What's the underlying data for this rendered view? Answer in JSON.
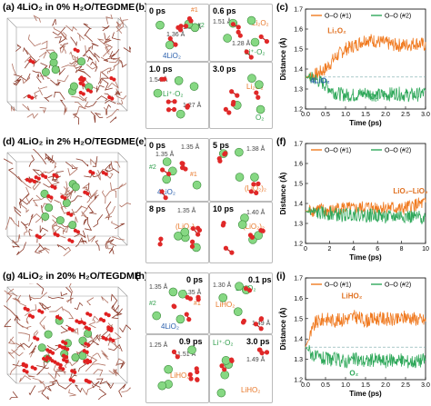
{
  "row1": {
    "a": {
      "letter": "(a)",
      "title": "4LiO₂ in 0% H₂O/TEGDME"
    },
    "b": {
      "letter": "(b)",
      "p1": {
        "time": "0 ps",
        "labels": [
          "#1",
          "#2",
          "1.36 Å",
          "1.36 Å",
          "4LiO₂"
        ]
      },
      "p2": {
        "time": "0.6 ps",
        "labels": [
          "1.51 Å",
          "Li₂O₂",
          "1.28 Å",
          "Li⁺·O₂"
        ]
      },
      "p3": {
        "time": "1.0 ps",
        "labels": [
          "1.54 Å",
          "Li⁺·O₂",
          "1.27 Å"
        ]
      },
      "p4": {
        "time": "3.0 ps",
        "labels": [
          "Li₂O₂",
          "O₂"
        ]
      }
    },
    "c": {
      "letter": "(c)",
      "legend": [
        "O–O (#1)",
        "O–O (#2)"
      ],
      "ann": [
        "Li₂O₂",
        "4LiO₂",
        "O₂"
      ],
      "ylabel": "Distance (Å)",
      "xlabel": "Time (ps)"
    }
  },
  "row2": {
    "d": {
      "letter": "(d)",
      "title": "4LiO₂ in 2% H₂O/TEGDME"
    },
    "e": {
      "letter": "(e)",
      "p1": {
        "time": "0 ps",
        "labels": [
          "1.35 Å",
          "1.35 Å",
          "#2",
          "#1",
          "4LiO₂"
        ]
      },
      "p2": {
        "time": "5 ps",
        "labels": [
          "1.38 Å",
          "(LiO₂)₂"
        ]
      },
      "p3": {
        "time": "8 ps",
        "labels": [
          "1.35 Å",
          "(LiO₂)₂"
        ]
      },
      "p4": {
        "time": "10 ps",
        "labels": [
          "1.40 Å",
          "(LiO₂)₂"
        ]
      }
    },
    "f": {
      "letter": "(f)",
      "legend": [
        "O–O (#1)",
        "O–O (#2)"
      ],
      "ann": [
        "LiO₂–LiO₂"
      ],
      "ylabel": "Distance (Å)",
      "xlabel": "Time (ps)"
    }
  },
  "row3": {
    "g": {
      "letter": "(g)",
      "title": "4LiO₂ in 20% H₂O/TEGDME"
    },
    "h": {
      "letter": "(h)",
      "p1": {
        "time": "0 ps",
        "labels": [
          "1.35 Å",
          "#2",
          "#1",
          "1.35 Å",
          "4LiO₂"
        ]
      },
      "p2": {
        "time": "0.1 ps",
        "labels": [
          "1.30 Å",
          "Li⁺·O₂",
          "LiHO₂",
          "1.49 Å"
        ]
      },
      "p3": {
        "time": "0.9 ps",
        "labels": [
          "1.25 Å",
          "1.51 Å",
          "LiHO₂"
        ]
      },
      "p4": {
        "time": "3.0 ps",
        "labels": [
          "Li⁺·O₂",
          "1.49 Å",
          "LiHO₂"
        ]
      }
    },
    "i": {
      "letter": "(i)",
      "legend": [
        "O–O (#1)",
        "O–O (#2)"
      ],
      "ann": [
        "LiHO₂",
        "O₂"
      ],
      "ylabel": "Distance (Å)",
      "xlabel": "Time (ps)"
    }
  },
  "chart_data": [
    {
      "panel": "c",
      "type": "line",
      "x": [
        0,
        0.25,
        0.5,
        0.75,
        1.0,
        1.25,
        1.5,
        1.75,
        2.0,
        2.25,
        2.5,
        2.75,
        3.0
      ],
      "series": [
        {
          "name": "O–O (#1)",
          "values": [
            1.36,
            1.37,
            1.4,
            1.46,
            1.5,
            1.52,
            1.55,
            1.54,
            1.53,
            1.52,
            1.52,
            1.53,
            1.52
          ]
        },
        {
          "name": "O–O (#2)",
          "values": [
            1.36,
            1.35,
            1.32,
            1.28,
            1.27,
            1.27,
            1.28,
            1.27,
            1.27,
            1.28,
            1.27,
            1.27,
            1.28
          ]
        }
      ],
      "xlim": [
        0,
        3.0
      ],
      "ylim": [
        1.2,
        1.7
      ],
      "xticks": [
        0.0,
        0.5,
        1.0,
        1.5,
        2.0,
        2.5,
        3.0
      ],
      "yticks": [
        1.2,
        1.3,
        1.4,
        1.5,
        1.6,
        1.7
      ],
      "xlabel": "Time (ps)",
      "ylabel": "Distance (Å)",
      "ref": 1.36
    },
    {
      "panel": "f",
      "type": "line",
      "x": [
        0,
        1,
        2,
        3,
        4,
        5,
        6,
        7,
        8,
        9,
        10
      ],
      "series": [
        {
          "name": "O–O (#1)",
          "values": [
            1.36,
            1.37,
            1.36,
            1.38,
            1.37,
            1.38,
            1.38,
            1.38,
            1.37,
            1.39,
            1.4
          ]
        },
        {
          "name": "O–O (#2)",
          "values": [
            1.36,
            1.35,
            1.35,
            1.34,
            1.35,
            1.34,
            1.34,
            1.33,
            1.34,
            1.33,
            1.33
          ]
        }
      ],
      "xlim": [
        0,
        10
      ],
      "ylim": [
        1.2,
        1.7
      ],
      "xticks": [
        0,
        2,
        4,
        6,
        8,
        10
      ],
      "yticks": [
        1.2,
        1.3,
        1.4,
        1.5,
        1.6,
        1.7
      ],
      "xlabel": "Time (ps)",
      "ylabel": "Distance (Å)"
    },
    {
      "panel": "i",
      "type": "line",
      "x": [
        0,
        0.25,
        0.5,
        0.75,
        1.0,
        1.25,
        1.5,
        1.75,
        2.0,
        2.25,
        2.5,
        2.75,
        3.0
      ],
      "series": [
        {
          "name": "O–O (#1)",
          "values": [
            1.36,
            1.48,
            1.5,
            1.49,
            1.5,
            1.51,
            1.49,
            1.5,
            1.5,
            1.49,
            1.51,
            1.5,
            1.49
          ]
        },
        {
          "name": "O–O (#2)",
          "values": [
            1.36,
            1.31,
            1.3,
            1.3,
            1.29,
            1.3,
            1.29,
            1.3,
            1.29,
            1.3,
            1.29,
            1.29,
            1.3
          ]
        }
      ],
      "xlim": [
        0,
        3.0
      ],
      "ylim": [
        1.2,
        1.7
      ],
      "xticks": [
        0.0,
        0.5,
        1.0,
        1.5,
        2.0,
        2.5,
        3.0
      ],
      "yticks": [
        1.2,
        1.3,
        1.4,
        1.5,
        1.6,
        1.7
      ],
      "xlabel": "Time (ps)",
      "ylabel": "Distance (Å)",
      "ref": 1.36
    }
  ]
}
